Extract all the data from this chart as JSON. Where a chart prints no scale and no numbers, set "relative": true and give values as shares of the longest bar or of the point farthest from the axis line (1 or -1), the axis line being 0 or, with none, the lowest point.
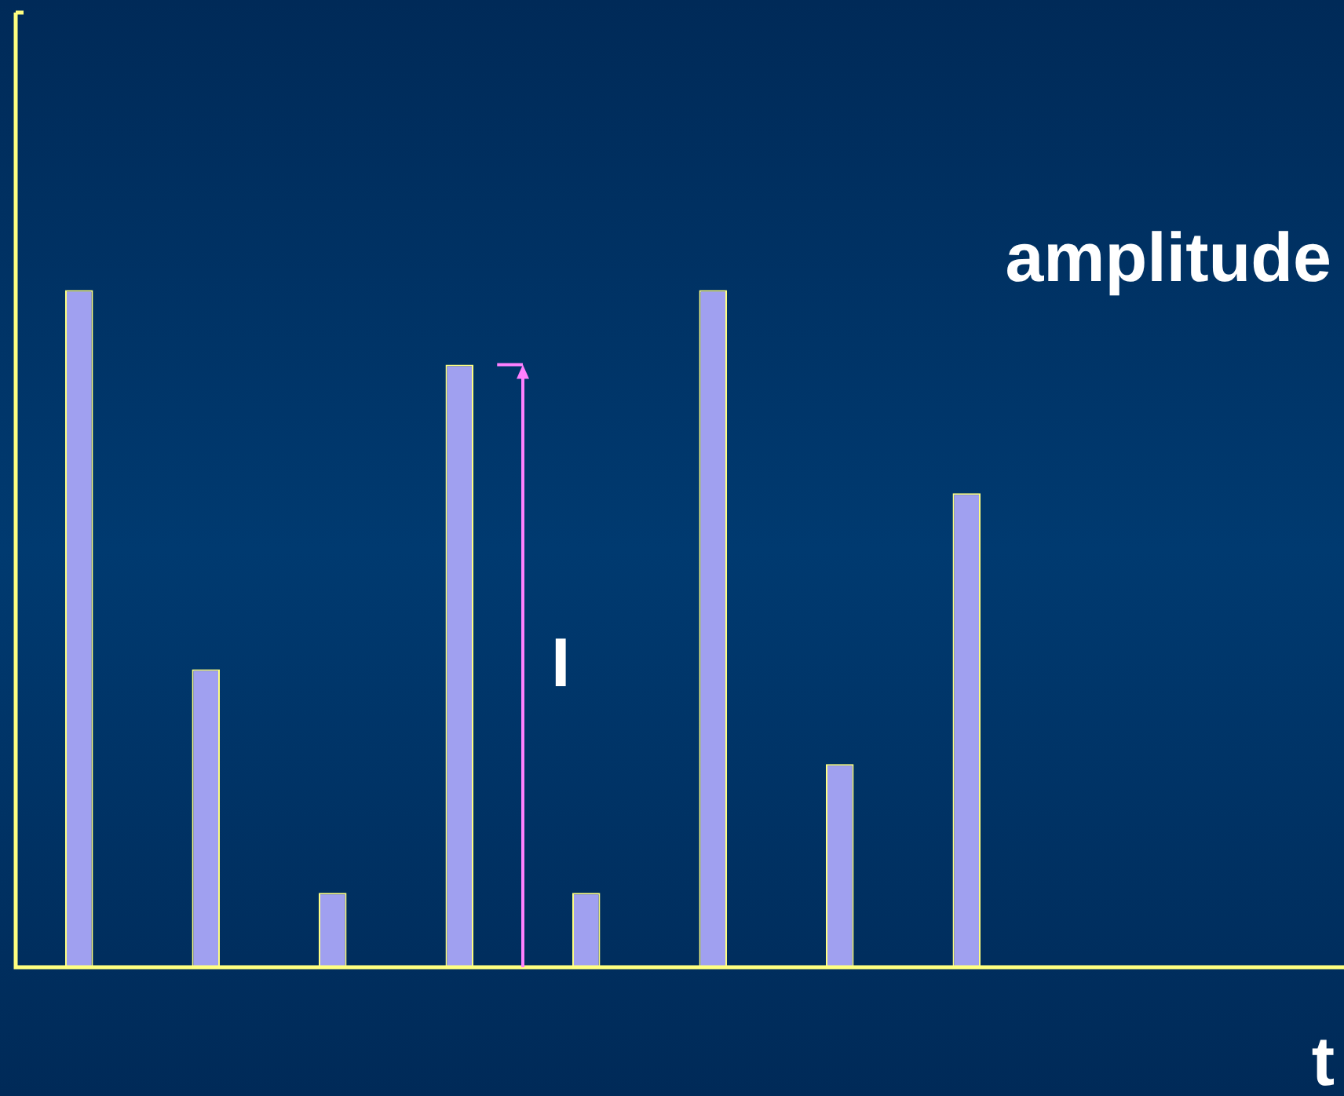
{
  "chart_data": {
    "type": "bar",
    "relative": true,
    "xlabel": "t",
    "ylabel": "amplitude",
    "annotations": [
      "I"
    ],
    "categories": [
      null,
      null,
      null,
      null,
      null,
      null,
      null,
      null
    ],
    "values": [
      1,
      0.44,
      0.11,
      0.89,
      0.11,
      1,
      0.3,
      0.7
    ],
    "color": "#a0a0f0",
    "grid": false,
    "legend": false
  }
}
